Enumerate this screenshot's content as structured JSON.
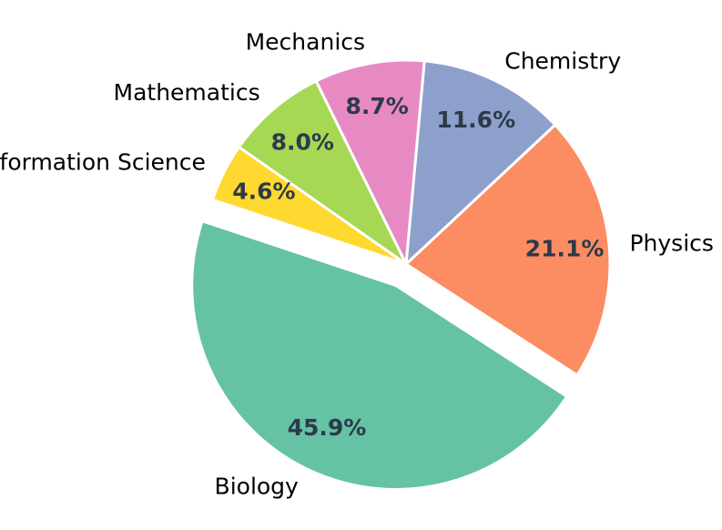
{
  "chart_data": {
    "type": "pie",
    "title": "",
    "slices": [
      {
        "label": "Physics",
        "percent_label": "21.1%",
        "value": 21.1,
        "color": "#fc8d62",
        "explode": false
      },
      {
        "label": "Chemistry",
        "percent_label": "11.6%",
        "value": 11.6,
        "color": "#8da0cb",
        "explode": false
      },
      {
        "label": "Mechanics",
        "percent_label": "8.7%",
        "value": 8.7,
        "color": "#e78ac3",
        "explode": false
      },
      {
        "label": "Mathematics",
        "percent_label": "8.0%",
        "value": 8.0,
        "color": "#a6d854",
        "explode": false
      },
      {
        "label": "Information Science",
        "percent_label": "4.6%",
        "value": 4.6,
        "color": "#ffd92f",
        "explode": false
      },
      {
        "label": "Biology",
        "percent_label": "45.9%",
        "value": 45.9,
        "color": "#66c2a5",
        "explode": true
      }
    ],
    "start_angle_deg": -33,
    "direction": "counterclockwise",
    "legend": "none"
  }
}
